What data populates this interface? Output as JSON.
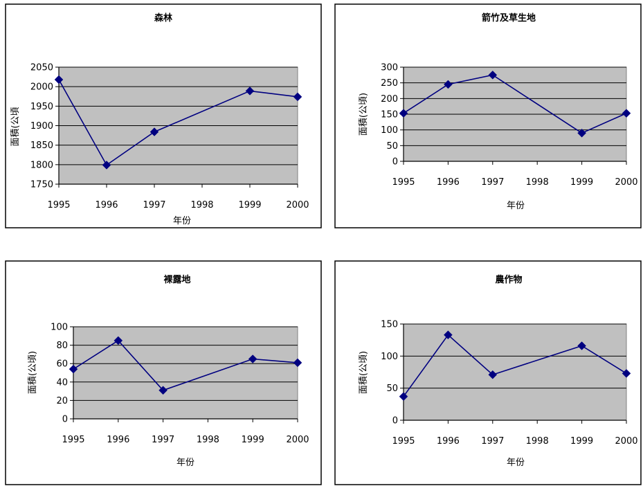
{
  "chart_data": [
    {
      "type": "line",
      "title": "森林",
      "xlabel": "年份",
      "ylabel": "面積(公頃",
      "x": [
        1995,
        1996,
        1997,
        1999,
        2000
      ],
      "x_ticks": [
        1995,
        1996,
        1997,
        1998,
        1999,
        2000
      ],
      "y_ticks": [
        1750,
        1800,
        1850,
        1900,
        1950,
        2000,
        2050
      ],
      "ylim": [
        1750,
        2050
      ],
      "xlim": [
        1995,
        2000
      ],
      "series": [
        {
          "values": [
            2018,
            1799,
            1884,
            1989,
            1974
          ]
        }
      ],
      "plot_background": "#c0c0c0",
      "line_color": "#000080",
      "grid": true
    },
    {
      "type": "line",
      "title": "箭竹及草生地",
      "xlabel": "年份",
      "ylabel": "面積(公頃)",
      "x": [
        1995,
        1996,
        1997,
        1999,
        2000
      ],
      "x_ticks": [
        1995,
        1996,
        1997,
        1998,
        1999,
        2000
      ],
      "y_ticks": [
        0,
        50,
        100,
        150,
        200,
        250,
        300
      ],
      "ylim": [
        0,
        300
      ],
      "xlim": [
        1995,
        2000
      ],
      "series": [
        {
          "values": [
            153,
            245,
            275,
            90,
            153
          ]
        }
      ],
      "plot_background": "#c0c0c0",
      "line_color": "#000080",
      "grid": true
    },
    {
      "type": "line",
      "title": "裸露地",
      "xlabel": "年份",
      "ylabel": "面積(公頃)",
      "x": [
        1995,
        1996,
        1997,
        1999,
        2000
      ],
      "x_ticks": [
        1995,
        1996,
        1997,
        1998,
        1999,
        2000
      ],
      "y_ticks": [
        0,
        20,
        40,
        60,
        80,
        100
      ],
      "ylim": [
        0,
        100
      ],
      "xlim": [
        1995,
        2000
      ],
      "series": [
        {
          "values": [
            54,
            85,
            31,
            65,
            61
          ]
        }
      ],
      "plot_background": "#c0c0c0",
      "line_color": "#000080",
      "grid": true
    },
    {
      "type": "line",
      "title": "農作物",
      "xlabel": "年份",
      "ylabel": "面積(公頃)",
      "x": [
        1995,
        1996,
        1997,
        1999,
        2000
      ],
      "x_ticks": [
        1995,
        1996,
        1997,
        1998,
        1999,
        2000
      ],
      "y_ticks": [
        0,
        50,
        100,
        150
      ],
      "ylim": [
        0,
        150
      ],
      "xlim": [
        1995,
        2000
      ],
      "series": [
        {
          "values": [
            37,
            133,
            71,
            116,
            73
          ]
        }
      ],
      "plot_background": "#c0c0c0",
      "line_color": "#000080",
      "grid": true
    }
  ]
}
